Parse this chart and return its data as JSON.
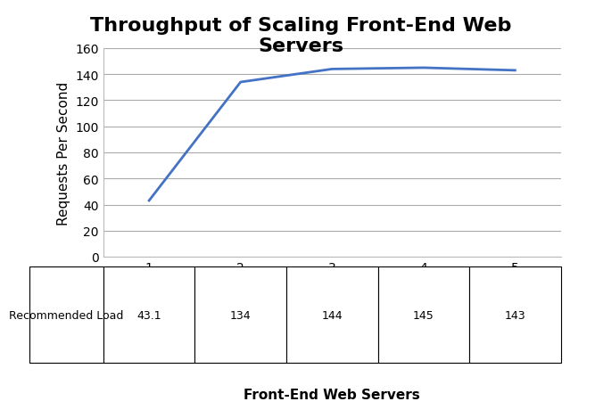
{
  "title": "Throughput of Scaling Front-End Web\nServers",
  "xlabel": "Front-End Web Servers",
  "ylabel": "Requests Per Second",
  "x": [
    1,
    2,
    3,
    4,
    5
  ],
  "y": [
    43.1,
    134,
    144,
    145,
    143
  ],
  "line_color": "#4472C4",
  "line_width": 2.0,
  "ylim": [
    0,
    160
  ],
  "yticks": [
    0,
    20,
    40,
    60,
    80,
    100,
    120,
    140,
    160
  ],
  "xticks": [
    1,
    2,
    3,
    4,
    5
  ],
  "grid_color": "#AAAAAA",
  "background_color": "#FFFFFF",
  "table_row_label": "Recommended Load",
  "table_values": [
    "43.1",
    "134",
    "144",
    "145",
    "143"
  ],
  "title_fontsize": 16,
  "axis_label_fontsize": 11,
  "tick_fontsize": 10,
  "table_fontsize": 9,
  "xlabel_fontsize": 11
}
